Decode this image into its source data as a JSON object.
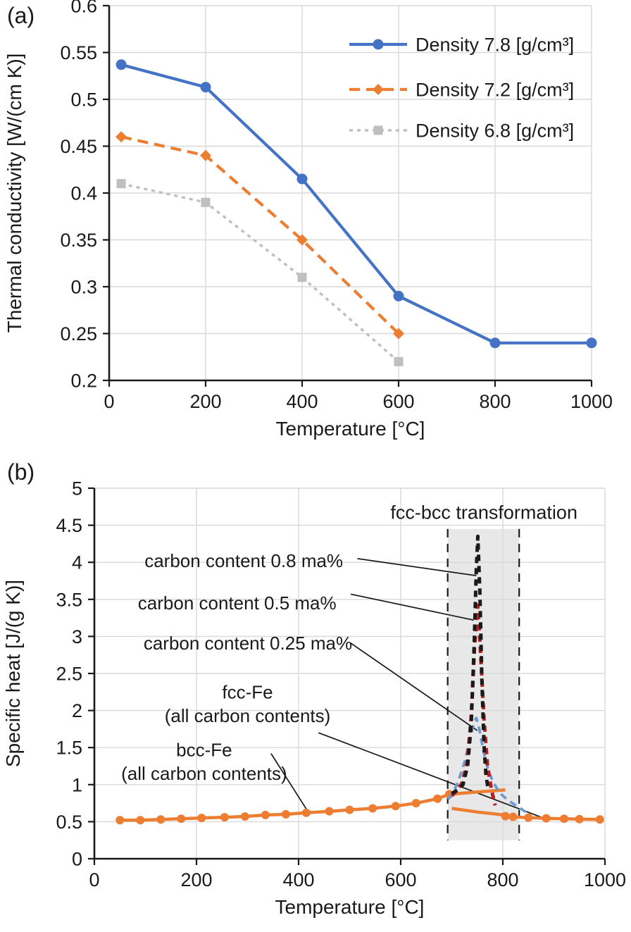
{
  "figure": {
    "panel_a_label": "(a)",
    "panel_b_label": "(b)"
  },
  "colors": {
    "blue": "#4472C4",
    "orange": "#ED7D31",
    "gray": "#BFBFBF",
    "dark_red": "#B22222",
    "light_blue": "#6C9BD2",
    "black": "#1a1a1a",
    "grid": "#D9D9D9",
    "shade": "#E8E8E8"
  },
  "chart_data": [
    {
      "id": "a",
      "type": "line",
      "xlabel": "Temperature [°C]",
      "ylabel": "Thermal conductivity [W/(cm K)]",
      "xlim": [
        0,
        1000
      ],
      "ylim": [
        0.2,
        0.6
      ],
      "xticks": [
        0,
        200,
        400,
        600,
        800,
        1000
      ],
      "yticks": [
        0.2,
        0.25,
        0.3,
        0.35,
        0.4,
        0.45,
        0.5,
        0.55,
        0.6
      ],
      "grid": true,
      "legend_position": "top-right",
      "series": [
        {
          "name": "Density 7.8 [g/cm³]",
          "color": "#4472C4",
          "dash": "",
          "width": 4.2,
          "marker": {
            "shape": "circle",
            "size": 7.5
          },
          "points": [
            [
              25,
              0.537
            ],
            [
              200,
              0.513
            ],
            [
              400,
              0.415
            ],
            [
              600,
              0.29
            ],
            [
              800,
              0.24
            ],
            [
              1000,
              0.24
            ]
          ]
        },
        {
          "name": "Density 7.2 [g/cm³]",
          "color": "#ED7D31",
          "dash": "15 9",
          "width": 4.2,
          "marker": {
            "shape": "diamond",
            "size": 8
          },
          "points": [
            [
              25,
              0.46
            ],
            [
              200,
              0.44
            ],
            [
              400,
              0.35
            ],
            [
              600,
              0.25
            ]
          ]
        },
        {
          "name": "Density 6.8 [g/cm³]",
          "color": "#BFBFBF",
          "dash": "5 6",
          "width": 3.4,
          "marker": {
            "shape": "square",
            "size": 6.5
          },
          "points": [
            [
              25,
              0.41
            ],
            [
              200,
              0.39
            ],
            [
              400,
              0.31
            ],
            [
              600,
              0.22
            ]
          ]
        }
      ]
    },
    {
      "id": "b",
      "type": "line",
      "xlabel": "Temperature [°C]",
      "ylabel": "Specific heat [J/(g K)]",
      "xlim": [
        0,
        1000
      ],
      "ylim": [
        0,
        5
      ],
      "xticks": [
        0,
        200,
        400,
        600,
        800,
        1000
      ],
      "yticks": [
        0,
        0.5,
        1,
        1.5,
        2,
        2.5,
        3,
        3.5,
        4,
        4.5,
        5
      ],
      "grid": true,
      "region": {
        "name": "fcc-bcc transformation zone",
        "t0": 692,
        "t1": 832,
        "v0": 0.25,
        "v1": 4.45
      },
      "series": [
        {
          "name": "bcc-Fe (all carbon contents)",
          "color": "#ED7D31",
          "dash": "",
          "width": 4.5,
          "marker": {
            "shape": "circle",
            "size": 6
          },
          "points": [
            [
              50,
              0.52
            ],
            [
              90,
              0.52
            ],
            [
              130,
              0.53
            ],
            [
              170,
              0.54
            ],
            [
              210,
              0.55
            ],
            [
              255,
              0.56
            ],
            [
              295,
              0.57
            ],
            [
              335,
              0.59
            ],
            [
              375,
              0.6
            ],
            [
              415,
              0.62
            ],
            [
              460,
              0.64
            ],
            [
              500,
              0.66
            ],
            [
              545,
              0.68
            ],
            [
              590,
              0.71
            ],
            [
              630,
              0.75
            ],
            [
              672,
              0.81
            ],
            [
              695,
              0.87
            ]
          ]
        },
        {
          "name": "bcc-Fe extension into transformation zone",
          "color": "#ED7D31",
          "dash": "",
          "width": 4.5,
          "marker": null,
          "points": [
            [
              695,
              0.87
            ],
            [
              750,
              0.9
            ],
            [
              805,
              0.93
            ]
          ]
        },
        {
          "name": "fcc-Fe extension into transformation zone",
          "color": "#ED7D31",
          "dash": "",
          "width": 4.5,
          "marker": null,
          "points": [
            [
              700,
              0.68
            ],
            [
              750,
              0.63
            ],
            [
              810,
              0.585
            ]
          ]
        },
        {
          "name": "fcc-Fe (all carbon contents)",
          "color": "#ED7D31",
          "dash": "",
          "width": 4.5,
          "marker": {
            "shape": "circle",
            "size": 6
          },
          "points": [
            [
              805,
              0.575
            ],
            [
              820,
              0.565
            ],
            [
              850,
              0.555
            ],
            [
              885,
              0.545
            ],
            [
              920,
              0.54
            ],
            [
              950,
              0.535
            ],
            [
              990,
              0.53
            ]
          ]
        },
        {
          "name": "carbon content 0.25 ma%",
          "color": "#6C9BD2",
          "dash": "10 7",
          "width": 3.8,
          "marker": null,
          "points": [
            [
              693,
              0.8
            ],
            [
              703,
              0.9
            ],
            [
              713,
              1.05
            ],
            [
              725,
              1.3
            ],
            [
              735,
              1.6
            ],
            [
              743,
              1.82
            ],
            [
              748,
              1.9
            ],
            [
              754,
              1.75
            ],
            [
              762,
              1.45
            ],
            [
              772,
              1.18
            ],
            [
              782,
              1.02
            ],
            [
              795,
              0.88
            ],
            [
              810,
              0.79
            ],
            [
              830,
              0.7
            ],
            [
              845,
              0.63
            ]
          ]
        },
        {
          "name": "carbon content 0.5 ma%",
          "color": "#B22222",
          "dash": "9 7",
          "width": 5,
          "marker": null,
          "points": [
            [
              700,
              0.85
            ],
            [
              710,
              0.92
            ],
            [
              720,
              1.02
            ],
            [
              730,
              1.3
            ],
            [
              738,
              1.9
            ],
            [
              745,
              2.9
            ],
            [
              751,
              3.42
            ],
            [
              757,
              2.7
            ],
            [
              763,
              1.9
            ],
            [
              770,
              1.25
            ],
            [
              778,
              0.92
            ],
            [
              785,
              0.72
            ]
          ]
        },
        {
          "name": "carbon content 0.8 ma%",
          "color": "#1a1a1a",
          "dash": "9 7",
          "width": 5,
          "marker": null,
          "points": [
            [
              700,
              0.88
            ],
            [
              712,
              0.93
            ],
            [
              722,
              1.0
            ],
            [
              731,
              1.25
            ],
            [
              738,
              1.8
            ],
            [
              744,
              2.9
            ],
            [
              748,
              3.9
            ],
            [
              751,
              4.35
            ],
            [
              755,
              3.6
            ],
            [
              759,
              2.4
            ],
            [
              763,
              1.55
            ],
            [
              767,
              1.12
            ],
            [
              771,
              0.95
            ]
          ]
        }
      ],
      "annotations": [
        {
          "id": "region-title",
          "text": "fcc-bcc transformation",
          "t": 763,
          "v": 4.67,
          "anchor": "middle",
          "size": 27
        },
        {
          "id": "carbon-08",
          "text": "carbon content 0.8 ma%",
          "t": 487,
          "v": 4.02,
          "anchor": "end",
          "size": 26
        },
        {
          "id": "carbon-05",
          "text": "carbon content 0.5 ma%",
          "t": 474,
          "v": 3.45,
          "anchor": "end",
          "size": 26
        },
        {
          "id": "carbon-025",
          "text": "carbon content 0.25 ma%",
          "t": 505,
          "v": 2.91,
          "anchor": "end",
          "size": 26
        },
        {
          "id": "fcc-label-1",
          "text": "fcc-Fe",
          "t": 300,
          "v": 2.25,
          "anchor": "middle",
          "size": 26
        },
        {
          "id": "fcc-label-2",
          "text": "(all carbon contents)",
          "t": 300,
          "v": 1.93,
          "anchor": "middle",
          "size": 26
        },
        {
          "id": "bcc-label-1",
          "text": "bcc-Fe",
          "t": 215,
          "v": 1.47,
          "anchor": "middle",
          "size": 26
        },
        {
          "id": "bcc-label-2",
          "text": "(all carbon contents)",
          "t": 215,
          "v": 1.15,
          "anchor": "middle",
          "size": 26
        }
      ],
      "leaders": [
        {
          "from": [
            515,
            4.05
          ],
          "to": [
            748,
            3.82
          ]
        },
        {
          "from": [
            502,
            3.57
          ],
          "to": [
            743,
            3.22
          ]
        },
        {
          "from": [
            502,
            2.91
          ],
          "to": [
            750,
            1.73
          ]
        },
        {
          "from": [
            439,
            1.7
          ],
          "to": [
            887,
            0.53
          ]
        },
        {
          "from": [
            346,
            1.42
          ],
          "to": [
            418,
            0.64
          ]
        }
      ]
    }
  ]
}
